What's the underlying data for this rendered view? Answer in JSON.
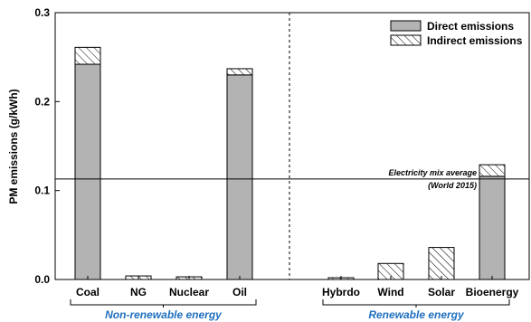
{
  "chart_data": {
    "type": "bar",
    "stacked": true,
    "ylabel": "PM emissions (g/kWh)",
    "ylim": [
      0,
      0.3
    ],
    "yticks": [
      "0.0",
      "0.1",
      "0.2",
      "0.3"
    ],
    "ytick_values": [
      0,
      0.1,
      0.2,
      0.3
    ],
    "categories": [
      "Coal",
      "NG",
      "Nuclear",
      "Oil",
      "Hybrdo",
      "Wind",
      "Solar",
      "Bioenergy"
    ],
    "series": [
      {
        "name": "Direct emissions",
        "values": [
          0.242,
          0,
          0,
          0.23,
          0,
          0,
          0,
          0.116
        ]
      },
      {
        "name": "Indirect emissions",
        "values": [
          0.019,
          0.004,
          0.003,
          0.007,
          0.002,
          0.018,
          0.036,
          0.013
        ]
      }
    ],
    "groups": [
      {
        "label": "Non-renewable energy",
        "categories": [
          "Coal",
          "NG",
          "Nuclear",
          "Oil"
        ]
      },
      {
        "label": "Renewable energy",
        "categories": [
          "Hybrdo",
          "Wind",
          "Solar",
          "Bioenergy"
        ]
      }
    ],
    "reference_line": {
      "value": 0.113,
      "label_line1": "Electricity mix average",
      "label_line2": "(World 2015)"
    },
    "legend_position": "top-right",
    "colors": {
      "direct": "#b3b3b3",
      "group_label": "#1f6fbf"
    },
    "grid": false
  }
}
